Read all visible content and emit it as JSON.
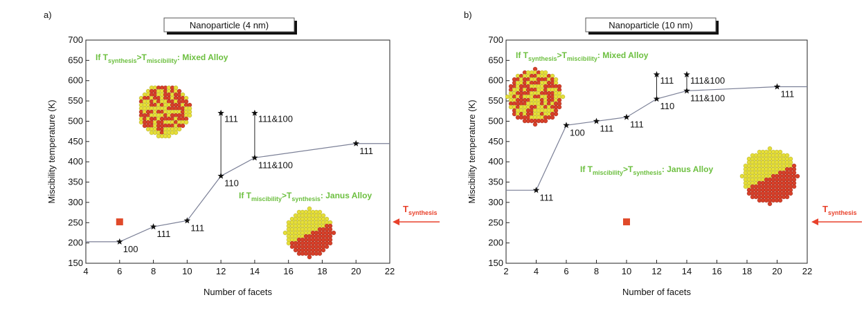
{
  "chart_data": [
    {
      "type": "line",
      "panel_label": "a)",
      "title": "Nanoparticle (4 nm)",
      "xlabel": "Number of facets",
      "ylabel": "Miscibility temperature (K)",
      "xlim": [
        4,
        22
      ],
      "ylim": [
        150,
        700
      ],
      "xticks": [
        4,
        6,
        8,
        10,
        12,
        14,
        16,
        18,
        20,
        22
      ],
      "yticks": [
        150,
        200,
        250,
        300,
        350,
        400,
        450,
        500,
        550,
        600,
        650,
        700
      ],
      "line": {
        "color": "#7a7f96",
        "x": [
          4,
          6,
          8,
          10,
          12,
          14,
          20,
          22
        ],
        "values": [
          203,
          203,
          240,
          255,
          365,
          410,
          445,
          445
        ]
      },
      "points": {
        "x": [
          6,
          8,
          10,
          12,
          14,
          20
        ],
        "values": [
          203,
          240,
          255,
          365,
          410,
          445
        ],
        "labels": [
          "100",
          "111",
          "111",
          "110",
          "111&100",
          "111"
        ]
      },
      "upper_points": {
        "x": [
          12,
          14
        ],
        "values": [
          520,
          520
        ],
        "labels": [
          "111",
          "111&100"
        ]
      },
      "square": {
        "x": 6,
        "value": 252,
        "color": "#e04a2a"
      },
      "mixed_label": [
        "If T",
        "synthesis",
        ">T",
        "miscibility",
        ": Mixed Alloy"
      ],
      "janus_label": [
        "If T",
        "miscibility",
        ">T",
        "synthesis",
        ": Janus Alloy"
      ],
      "arrow_label": [
        "T",
        "synthesis"
      ]
    },
    {
      "type": "line",
      "panel_label": "b)",
      "title": "Nanoparticle (10 nm)",
      "xlabel": "Number of facets",
      "ylabel": "Miscibility temperature (K)",
      "xlim": [
        2,
        22
      ],
      "ylim": [
        150,
        700
      ],
      "xticks": [
        2,
        4,
        6,
        8,
        10,
        12,
        14,
        16,
        18,
        20,
        22
      ],
      "yticks": [
        150,
        200,
        250,
        300,
        350,
        400,
        450,
        500,
        550,
        600,
        650,
        700
      ],
      "line": {
        "color": "#7a7f96",
        "x": [
          2,
          4,
          6,
          8,
          10,
          12,
          14,
          20,
          22
        ],
        "values": [
          330,
          330,
          490,
          500,
          510,
          555,
          575,
          585,
          585
        ]
      },
      "points": {
        "x": [
          4,
          6,
          8,
          10,
          12,
          14,
          20
        ],
        "values": [
          330,
          490,
          500,
          510,
          555,
          575,
          585
        ],
        "labels": [
          "111",
          "100",
          "111",
          "111",
          "110",
          "111&100",
          "111"
        ]
      },
      "upper_points": {
        "x": [
          12,
          14
        ],
        "values": [
          615,
          615
        ],
        "labels": [
          "111",
          "111&100"
        ]
      },
      "square": {
        "x": 10,
        "value": 252,
        "color": "#e04a2a"
      },
      "mixed_label": [
        "If T",
        "synthesis",
        ">T",
        "miscibility",
        ": Mixed Alloy"
      ],
      "janus_label": [
        "If T",
        "miscibility",
        ">T",
        "synthesis",
        ": Janus Alloy"
      ],
      "arrow_label": [
        "T",
        "synthesis"
      ]
    }
  ]
}
